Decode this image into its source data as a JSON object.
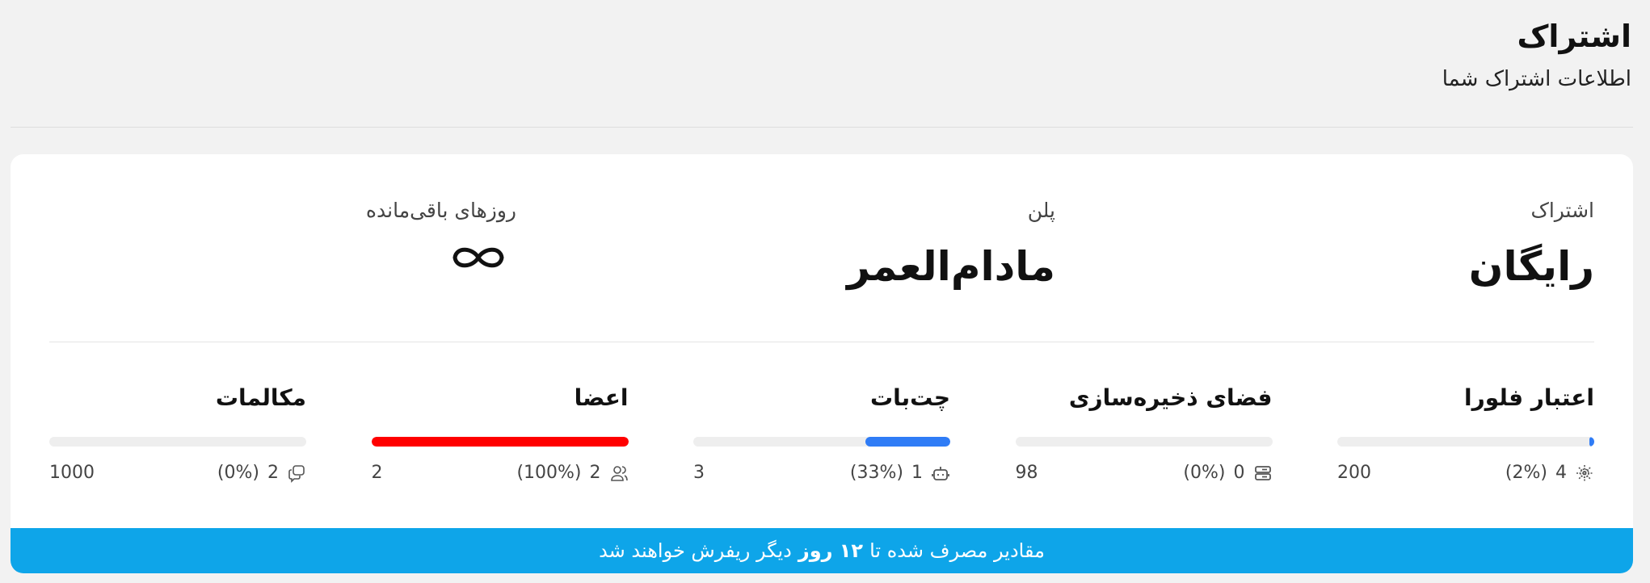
{
  "header": {
    "title": "اشتراک",
    "subtitle": "اطلاعات اشتراک شما"
  },
  "summary": [
    {
      "label": "اشتراک",
      "value": "رایگان"
    },
    {
      "label": "پلن",
      "value": "مادام‌العمر"
    },
    {
      "label": "روزهای باقی‌مانده",
      "value": "∞",
      "icon": "infinity-icon"
    }
  ],
  "stats": [
    {
      "name": "اعتبار فلورا",
      "used": "4",
      "percent": "(2%)",
      "total": "200",
      "fill": 2,
      "color": "#2f7cf6",
      "icon": "sparkle-icon"
    },
    {
      "name": "فضای ذخیره‌سازی",
      "used": "0",
      "percent": "(0%)",
      "total": "98",
      "fill": 0,
      "color": "#2f7cf6",
      "icon": "server-icon"
    },
    {
      "name": "چت‌بات",
      "used": "1",
      "percent": "(33%)",
      "total": "3",
      "fill": 33,
      "color": "#2f7cf6",
      "icon": "robot-icon"
    },
    {
      "name": "اعضا",
      "used": "2",
      "percent": "(100%)",
      "total": "2",
      "fill": 100,
      "color": "#ff0000",
      "icon": "users-icon"
    },
    {
      "name": "مکالمات",
      "used": "2",
      "percent": "(0%)",
      "total": "1000",
      "fill": 0,
      "color": "#2f7cf6",
      "icon": "chat-icon"
    }
  ],
  "banner": {
    "before": "مقادیر مصرف شده تا",
    "bold": "۱۲ روز",
    "after": "دیگر ریفرش خواهند شد",
    "color": "#0ea5e9"
  }
}
